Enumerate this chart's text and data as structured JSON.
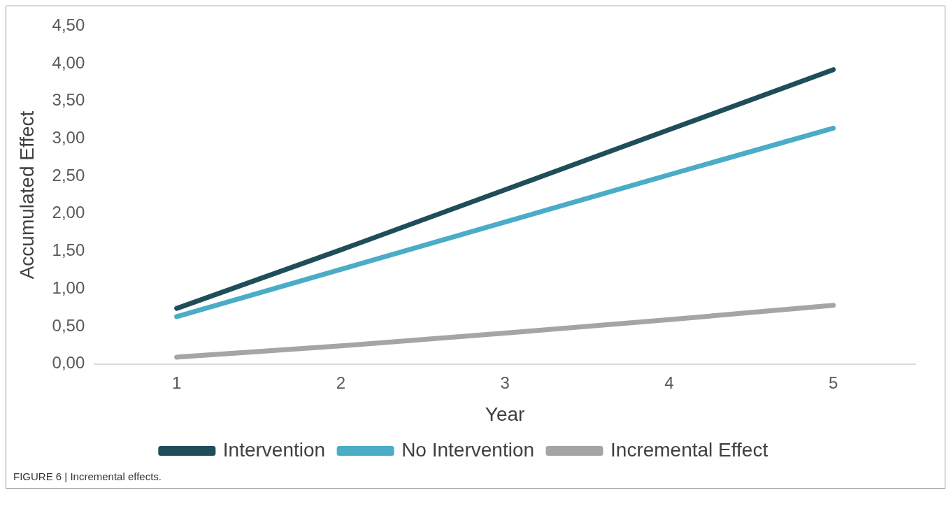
{
  "chart_data": {
    "type": "line",
    "xlabel": "Year",
    "ylabel": "Accumulated Effect",
    "categories": [
      "1",
      "2",
      "3",
      "4",
      "5"
    ],
    "series": [
      {
        "name": "Intervention",
        "color": "#1f4e5a",
        "values": [
          0.74,
          1.52,
          2.32,
          3.12,
          3.92
        ]
      },
      {
        "name": "No Intervention",
        "color": "#4bacc6",
        "values": [
          0.63,
          1.26,
          1.89,
          2.52,
          3.14
        ]
      },
      {
        "name": "Incremental Effect",
        "color": "#a5a5a5",
        "values": [
          0.09,
          0.24,
          0.41,
          0.59,
          0.78
        ]
      }
    ],
    "ylim": [
      0,
      4.5
    ],
    "yticks": [
      {
        "value": 0,
        "label": "0,00"
      },
      {
        "value": 0.5,
        "label": "0,50"
      },
      {
        "value": 1,
        "label": "1,00"
      },
      {
        "value": 1.5,
        "label": "1,50"
      },
      {
        "value": 2,
        "label": "2,00"
      },
      {
        "value": 2.5,
        "label": "2,50"
      },
      {
        "value": 3,
        "label": "3,00"
      },
      {
        "value": 3.5,
        "label": "3,50"
      },
      {
        "value": 4,
        "label": "4,00"
      },
      {
        "value": 4.5,
        "label": "4,50"
      }
    ],
    "grid": false,
    "legend": "bottom",
    "marker": "none",
    "line_style": "solid",
    "annotations": [
      "FIGURE 6 | Incremental effects."
    ]
  }
}
